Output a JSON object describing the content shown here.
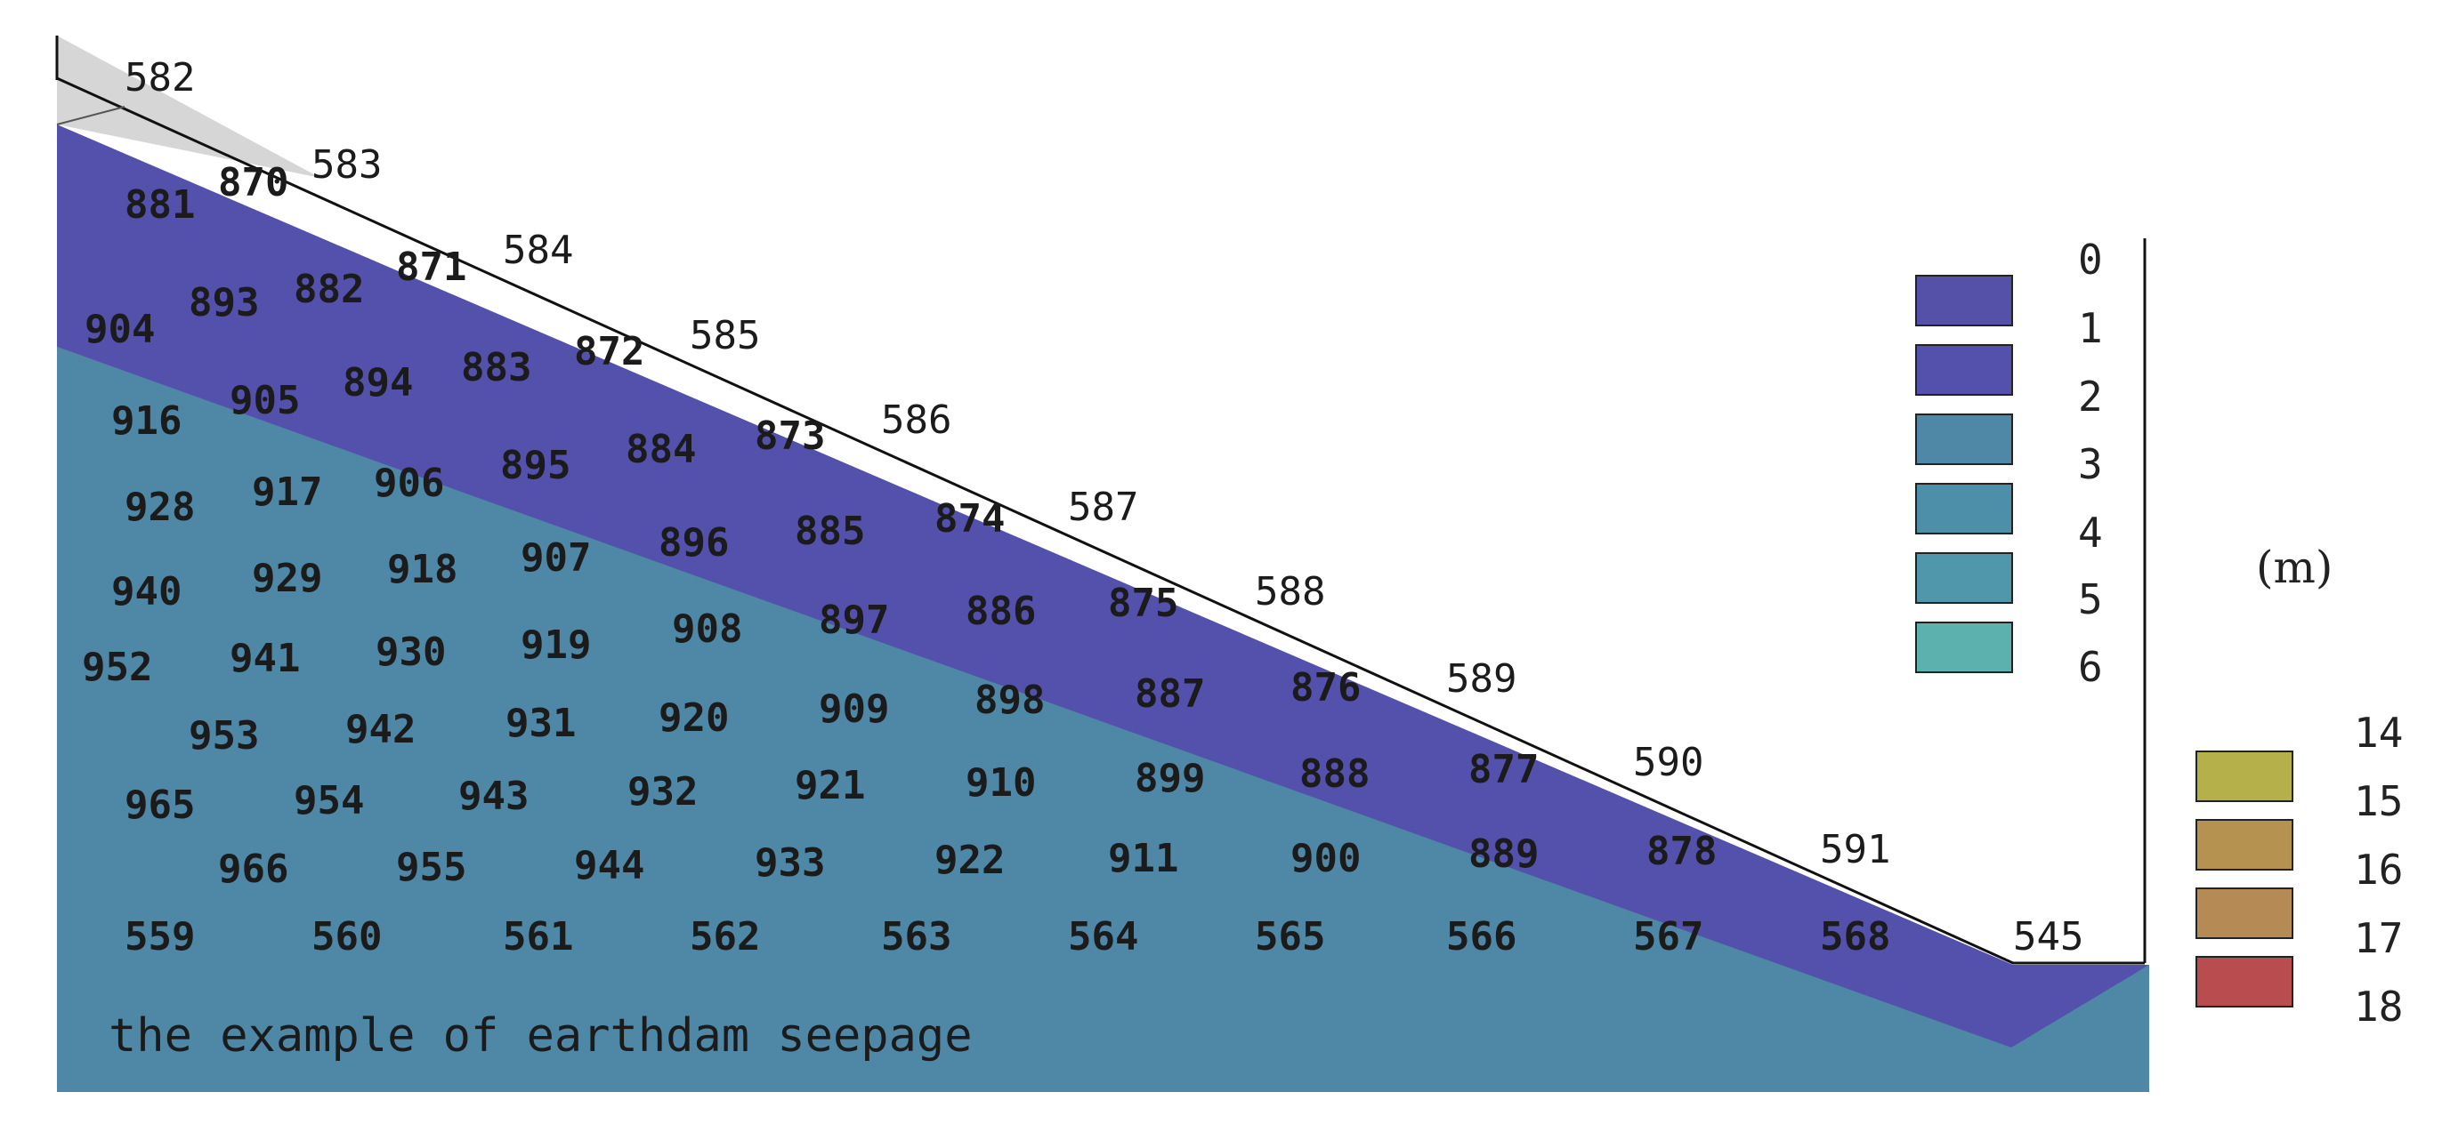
{
  "colors": {
    "zone_0_1": "#5651a8",
    "zone_1_2": "#5451ac",
    "zone_2_3": "#4f87a6",
    "zone_3_4": "#4d8ea8",
    "zone_4_5": "#5197ab",
    "zone_5_6": "#5cb1ae",
    "zone_green": "#4fae8a",
    "top_gray": "#d6d6d6",
    "label_dark": "#1b1b1b",
    "leg_14": "#b5b049",
    "leg_15": "#b5924f",
    "leg_16": "#b58a55",
    "leg_17": "#b84c4f"
  },
  "legend_blue": {
    "ticks": [
      "0",
      "1",
      "2",
      "3",
      "4",
      "5",
      "6"
    ],
    "swatch_colors": [
      "#5651a8",
      "#5451ac",
      "#4f87a6",
      "#4d8ea8",
      "#5197ab",
      "#5cb1ae"
    ]
  },
  "legend_unit": "(m)",
  "legend_warm": {
    "ticks": [
      "14",
      "15",
      "16",
      "17",
      "18"
    ],
    "swatch_colors": [
      "#b5b049",
      "#b5924f",
      "#b58a55",
      "#b84c4f"
    ]
  },
  "caption": "the example of earthdam seepage",
  "node_labels": {
    "surface": [
      "582",
      "583",
      "584",
      "585",
      "586",
      "587",
      "588",
      "589",
      "590",
      "591",
      "545"
    ],
    "row_1": [
      "881",
      "870"
    ],
    "row_2": [
      "882",
      "871"
    ],
    "row_3": [
      "904",
      "893"
    ],
    "row_4": [
      "905",
      "894",
      "883",
      "872"
    ],
    "row_5": [
      "916",
      "906",
      "895",
      "884",
      "873"
    ],
    "row_6": [
      "928",
      "917",
      "907",
      "896",
      "885",
      "874"
    ],
    "row_7": [
      "940",
      "929",
      "918",
      "908",
      "897",
      "886",
      "875"
    ],
    "row_8": [
      "952",
      "941",
      "930",
      "919",
      "920",
      "909",
      "898",
      "887",
      "876"
    ],
    "row_9": [
      "953",
      "942",
      "931",
      "921",
      "910",
      "899",
      "888",
      "877"
    ],
    "row_10": [
      "965",
      "954",
      "943",
      "932",
      "911",
      "900",
      "889",
      "878"
    ],
    "row_11": [
      "966",
      "955",
      "944",
      "933",
      "922"
    ],
    "row_12": [
      "559",
      "560",
      "561",
      "562",
      "563",
      "564",
      "565",
      "566",
      "567",
      "568"
    ]
  }
}
